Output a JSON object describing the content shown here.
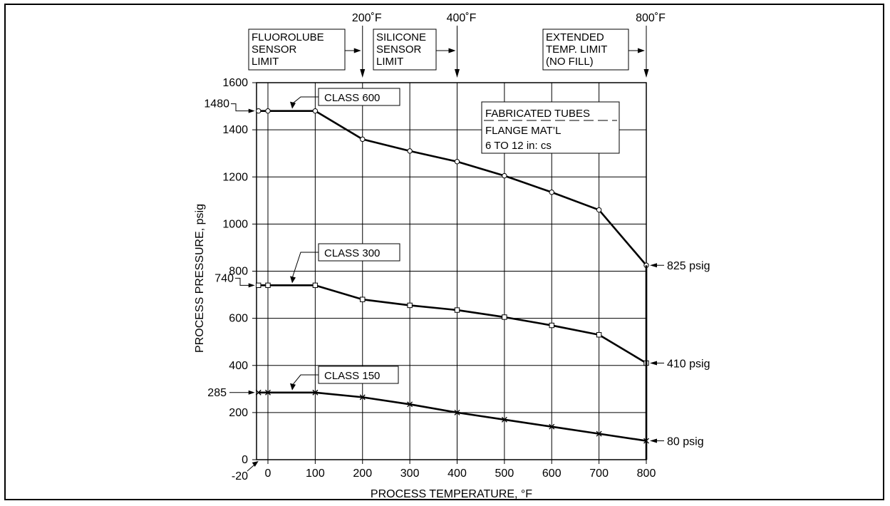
{
  "chart_data": {
    "type": "line",
    "xlabel": "PROCESS TEMPERATURE, °F",
    "ylabel": "PROCESS PRESSURE, psig",
    "xlim": [
      -20,
      800
    ],
    "ylim": [
      0,
      1600
    ],
    "x_ticks": [
      0,
      100,
      200,
      300,
      400,
      500,
      600,
      700,
      800
    ],
    "y_ticks": [
      0,
      200,
      400,
      600,
      800,
      1000,
      1200,
      1400,
      1600
    ],
    "x_extra_tick_label": "-20",
    "grid": true,
    "x": [
      -20,
      0,
      100,
      200,
      300,
      400,
      500,
      600,
      700,
      800
    ],
    "series": [
      {
        "name": "CLASS 600",
        "marker": "circle",
        "values": [
          1480,
          1480,
          1480,
          1360,
          1310,
          1265,
          1205,
          1135,
          1060,
          825
        ]
      },
      {
        "name": "CLASS 300",
        "marker": "square",
        "values": [
          740,
          740,
          740,
          680,
          655,
          635,
          605,
          570,
          530,
          410
        ]
      },
      {
        "name": "CLASS 150",
        "marker": "x",
        "values": [
          285,
          285,
          285,
          265,
          235,
          200,
          170,
          140,
          110,
          80
        ]
      }
    ],
    "start_labels": [
      {
        "text": "1480",
        "series": 0
      },
      {
        "text": "740",
        "series": 1
      },
      {
        "text": "285",
        "series": 2
      }
    ],
    "end_labels": [
      {
        "text": "825 psig",
        "series": 0
      },
      {
        "text": "410 psig",
        "series": 1
      },
      {
        "text": "80 psig",
        "series": 2
      }
    ],
    "temp_markers": [
      {
        "label": "200˚F",
        "x": 200
      },
      {
        "label": "400˚F",
        "x": 400
      },
      {
        "label": "800˚F",
        "x": 800
      }
    ],
    "limit_boxes": [
      {
        "lines": [
          "FLUOROLUBE",
          "SENSOR",
          "LIMIT"
        ],
        "arrow_to": 200
      },
      {
        "lines": [
          "SILICONE",
          "SENSOR",
          "LIMIT"
        ],
        "arrow_to": 400
      },
      {
        "lines": [
          "EXTENDED",
          "TEMP. LIMIT",
          "(NO FILL)"
        ],
        "arrow_to": 800
      }
    ],
    "info_box": [
      "FABRICATED TUBES",
      "FLANGE MAT’L",
      "6 TO 12 in: cs"
    ]
  }
}
